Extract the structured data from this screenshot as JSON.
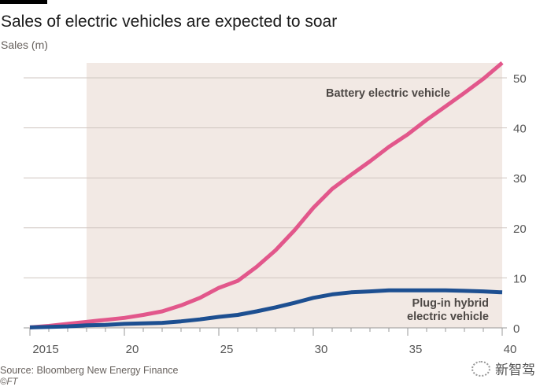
{
  "chart_data": {
    "type": "line",
    "title": "Sales of electric vehicles are expected to soar",
    "ylabel": "Sales (m)",
    "xlabel": "",
    "x": [
      2015,
      2016,
      2017,
      2018,
      2019,
      2020,
      2021,
      2022,
      2023,
      2024,
      2025,
      2026,
      2027,
      2028,
      2029,
      2030,
      2031,
      2032,
      2033,
      2034,
      2035,
      2036,
      2037,
      2038,
      2039,
      2040
    ],
    "xlim": [
      2015,
      2040
    ],
    "ylim": [
      0,
      53
    ],
    "x_ticks": [
      {
        "value": 2015,
        "label": "2015"
      },
      {
        "value": 2020,
        "label": "20"
      },
      {
        "value": 2025,
        "label": "25"
      },
      {
        "value": 2030,
        "label": "30"
      },
      {
        "value": 2035,
        "label": "35"
      },
      {
        "value": 2040,
        "label": "40"
      }
    ],
    "y_ticks": [
      {
        "value": 0,
        "label": "0"
      },
      {
        "value": 10,
        "label": "10"
      },
      {
        "value": 20,
        "label": "20"
      },
      {
        "value": 30,
        "label": "30"
      },
      {
        "value": 40,
        "label": "40"
      },
      {
        "value": 50,
        "label": "50"
      }
    ],
    "forecast_shading_from": 2018,
    "grid": true,
    "y_axis_side": "right",
    "series": [
      {
        "name": "Battery electric vehicle",
        "color": "#e2578b",
        "values": [
          0.1,
          0.4,
          0.8,
          1.2,
          1.6,
          2.0,
          2.6,
          3.3,
          4.5,
          6.0,
          8.0,
          9.4,
          12.2,
          15.5,
          19.5,
          24.0,
          27.8,
          30.6,
          33.3,
          36.2,
          38.7,
          41.6,
          44.3,
          47.0,
          49.8,
          53.0
        ]
      },
      {
        "name": "Plug-in hybrid electric vehicle",
        "color": "#1d4f91",
        "values": [
          0.1,
          0.2,
          0.3,
          0.5,
          0.6,
          0.8,
          0.9,
          1.0,
          1.3,
          1.7,
          2.2,
          2.6,
          3.3,
          4.1,
          5.0,
          6.0,
          6.7,
          7.1,
          7.3,
          7.5,
          7.5,
          7.5,
          7.5,
          7.4,
          7.3,
          7.1
        ]
      }
    ],
    "annotations": [
      {
        "text": "Battery electric vehicle",
        "series": 0
      },
      {
        "text": "Plug-in hybrid",
        "series": 1
      },
      {
        "text": "electric vehicle",
        "series": 1
      }
    ]
  },
  "footer": {
    "source": "Source: Bloomberg New Energy Finance",
    "copyright": "©FT",
    "watermark": "新智驾"
  },
  "colors": {
    "shading": "#f2e9e4",
    "grid": "#cfc6c0",
    "axis": "#999"
  }
}
